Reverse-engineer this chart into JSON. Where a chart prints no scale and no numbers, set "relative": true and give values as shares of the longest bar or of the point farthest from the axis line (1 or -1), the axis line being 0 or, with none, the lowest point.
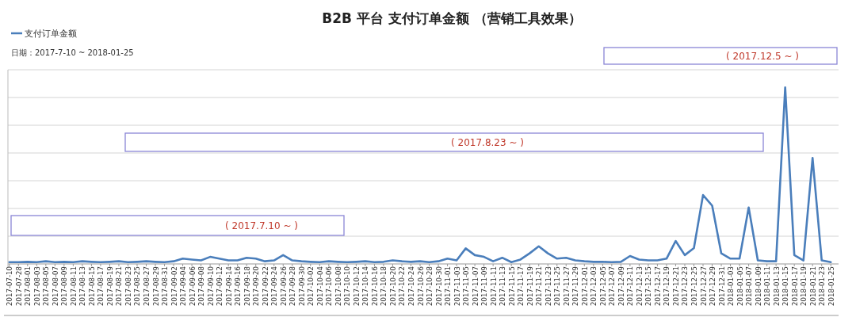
{
  "chart_data": {
    "type": "line",
    "title": "B2B 平台 支付订单金额 （营销工具效果）",
    "subtitle": "日期：2017-7-10 ~ 2018-01-25",
    "relative": true,
    "grid": "y",
    "legend": "top left",
    "categories": [
      "2017-07-10",
      "2017-07-28",
      "2017-08-01",
      "2017-08-03",
      "2017-08-05",
      "2017-08-07",
      "2017-08-09",
      "2017-08-11",
      "2017-08-13",
      "2017-08-15",
      "2017-08-17",
      "2017-08-19",
      "2017-08-21",
      "2017-08-23",
      "2017-08-25",
      "2017-08-27",
      "2017-08-29",
      "2017-08-31",
      "2017-09-02",
      "2017-09-04",
      "2017-09-06",
      "2017-09-08",
      "2017-09-10",
      "2017-09-12",
      "2017-09-14",
      "2017-09-16",
      "2017-09-18",
      "2017-09-20",
      "2017-09-22",
      "2017-09-24",
      "2017-09-26",
      "2017-09-28",
      "2017-09-30",
      "2017-10-02",
      "2017-10-04",
      "2017-10-06",
      "2017-10-08",
      "2017-10-10",
      "2017-10-12",
      "2017-10-14",
      "2017-10-16",
      "2017-10-18",
      "2017-10-20",
      "2017-10-22",
      "2017-10-24",
      "2017-10-26",
      "2017-10-28",
      "2017-10-30",
      "2017-11-01",
      "2017-11-03",
      "2017-11-05",
      "2017-11-07",
      "2017-11-09",
      "2017-11-11",
      "2017-11-13",
      "2017-11-15",
      "2017-11-17",
      "2017-11-19",
      "2017-11-21",
      "2017-11-23",
      "2017-11-25",
      "2017-11-27",
      "2017-11-29",
      "2017-12-01",
      "2017-12-03",
      "2017-12-05",
      "2017-12-07",
      "2017-12-09",
      "2017-12-11",
      "2017-12-13",
      "2017-12-15",
      "2017-12-17",
      "2017-12-19",
      "2017-12-21",
      "2017-12-23",
      "2017-12-25",
      "2017-12-27",
      "2017-12-29",
      "2017-12-31",
      "2018-01-03",
      "2018-01-05",
      "2018-01-07",
      "2018-01-09",
      "2018-01-11",
      "2018-01-13",
      "2018-01-15",
      "2018-01-17",
      "2018-01-19",
      "2018-01-21",
      "2018-01-23",
      "2018-01-25"
    ],
    "series": [
      {
        "name": "支付订单金额",
        "color": "#4a7ebb",
        "values": [
          0.01,
          0.01,
          0.012,
          0.01,
          0.015,
          0.01,
          0.012,
          0.01,
          0.015,
          0.012,
          0.01,
          0.012,
          0.015,
          0.01,
          0.012,
          0.015,
          0.012,
          0.01,
          0.015,
          0.03,
          0.025,
          0.02,
          0.04,
          0.03,
          0.02,
          0.02,
          0.035,
          0.03,
          0.015,
          0.02,
          0.05,
          0.02,
          0.015,
          0.012,
          0.01,
          0.015,
          0.012,
          0.01,
          0.012,
          0.015,
          0.01,
          0.012,
          0.02,
          0.015,
          0.012,
          0.015,
          0.01,
          0.015,
          0.03,
          0.02,
          0.088,
          0.05,
          0.04,
          0.015,
          0.035,
          0.01,
          0.025,
          0.06,
          0.1,
          0.06,
          0.03,
          0.035,
          0.02,
          0.015,
          0.012,
          0.012,
          0.01,
          0.012,
          0.045,
          0.025,
          0.02,
          0.02,
          0.03,
          0.13,
          0.05,
          0.09,
          0.39,
          0.33,
          0.06,
          0.03,
          0.03,
          0.32,
          0.02,
          0.015,
          0.015,
          1,
          0.05,
          0.02,
          0.6,
          0.02,
          0.01
        ]
      }
    ],
    "annotations": [
      "( 2017.7.10 ~ )",
      "( 2017.8.23 ~ )",
      "( 2017.12.5 ~ )"
    ]
  }
}
